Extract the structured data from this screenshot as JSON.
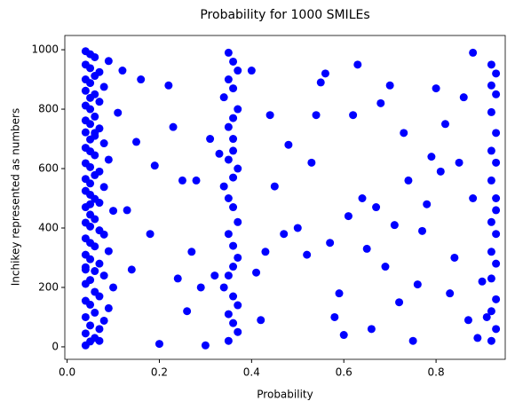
{
  "chart_data": {
    "type": "scatter",
    "title": "Probability for 1000 SMILEs",
    "x_label": "Probability",
    "y_label": "Inchikey represented as numbers",
    "color": "#0000ff",
    "xlim": [
      -0.005,
      0.95
    ],
    "ylim": [
      -42,
      1048
    ],
    "xticks": [
      {
        "value": 0,
        "label": "0.0"
      },
      0.2,
      0.4,
      0.6,
      0.8
    ],
    "yticks": [
      0,
      200,
      400,
      600,
      800,
      1000
    ],
    "x": [
      0.04,
      0.05,
      0.06,
      0.04,
      0.07,
      0.05,
      0.08,
      0.04,
      0.06,
      0.09,
      0.05,
      0.04,
      0.07,
      0.06,
      0.1,
      0.04,
      0.05,
      0.08,
      0.06,
      0.04,
      0.07,
      0.05,
      0.04,
      0.09,
      0.06,
      0.05,
      0.04,
      0.08,
      0.07,
      0.05,
      0.04,
      0.06,
      0.05,
      0.1,
      0.04,
      0.07,
      0.06,
      0.05,
      0.04,
      0.08,
      0.05,
      0.04,
      0.06,
      0.07,
      0.05,
      0.04,
      0.09,
      0.06,
      0.05,
      0.04,
      0.08,
      0.05,
      0.06,
      0.04,
      0.07,
      0.05,
      0.04,
      0.06,
      0.11,
      0.05,
      0.04,
      0.07,
      0.05,
      0.06,
      0.04,
      0.08,
      0.05,
      0.04,
      0.06,
      0.07,
      0.05,
      0.04,
      0.09,
      0.06,
      0.05,
      0.04,
      0.07,
      0.05,
      0.06,
      0.04,
      0.35,
      0.36,
      0.37,
      0.35,
      0.36,
      0.34,
      0.37,
      0.36,
      0.35,
      0.36,
      0.36,
      0.35,
      0.37,
      0.36,
      0.34,
      0.35,
      0.36,
      0.37,
      0.35,
      0.36,
      0.37,
      0.36,
      0.35,
      0.34,
      0.36,
      0.37,
      0.35,
      0.36,
      0.37,
      0.35,
      0.92,
      0.93,
      0.92,
      0.93,
      0.92,
      0.93,
      0.92,
      0.93,
      0.92,
      0.93,
      0.93,
      0.92,
      0.93,
      0.92,
      0.93,
      0.92,
      0.93,
      0.92,
      0.93,
      0.92,
      0.12,
      0.15,
      0.18,
      0.2,
      0.22,
      0.25,
      0.27,
      0.3,
      0.32,
      0.4,
      0.42,
      0.45,
      0.47,
      0.5,
      0.52,
      0.55,
      0.57,
      0.58,
      0.6,
      0.62,
      0.64,
      0.66,
      0.68,
      0.7,
      0.72,
      0.74,
      0.76,
      0.78,
      0.8,
      0.82,
      0.84,
      0.86,
      0.88,
      0.9,
      0.13,
      0.16,
      0.19,
      0.23,
      0.26,
      0.29,
      0.31,
      0.33,
      0.41,
      0.44,
      0.48,
      0.53,
      0.56,
      0.59,
      0.61,
      0.63,
      0.65,
      0.67,
      0.69,
      0.71,
      0.73,
      0.75,
      0.77,
      0.79,
      0.81,
      0.83,
      0.85,
      0.87,
      0.89,
      0.91,
      0.14,
      0.24,
      0.28,
      0.43,
      0.54,
      0.88
    ],
    "values": [
      5,
      18,
      30,
      45,
      60,
      72,
      88,
      100,
      115,
      130,
      142,
      155,
      170,
      185,
      200,
      212,
      225,
      240,
      255,
      268,
      280,
      295,
      310,
      322,
      338,
      350,
      365,
      378,
      392,
      405,
      418,
      430,
      445,
      458,
      470,
      485,
      498,
      512,
      525,
      538,
      550,
      565,
      578,
      590,
      605,
      618,
      630,
      645,
      658,
      670,
      685,
      698,
      710,
      722,
      735,
      750,
      762,
      775,
      788,
      800,
      812,
      825,
      838,
      850,
      862,
      875,
      888,
      900,
      912,
      925,
      938,
      950,
      962,
      975,
      985,
      995,
      20,
      480,
      720,
      260,
      990,
      960,
      930,
      900,
      870,
      840,
      800,
      770,
      740,
      700,
      660,
      630,
      600,
      570,
      540,
      500,
      470,
      420,
      380,
      340,
      300,
      270,
      240,
      200,
      170,
      140,
      110,
      80,
      50,
      20,
      950,
      920,
      880,
      850,
      790,
      720,
      660,
      620,
      560,
      500,
      460,
      420,
      380,
      320,
      280,
      230,
      160,
      120,
      60,
      20,
      930,
      690,
      380,
      10,
      880,
      560,
      320,
      5,
      240,
      930,
      90,
      540,
      380,
      400,
      310,
      890,
      350,
      100,
      40,
      780,
      500,
      60,
      820,
      880,
      150,
      560,
      210,
      480,
      870,
      750,
      300,
      840,
      500,
      220,
      460,
      900,
      610,
      740,
      120,
      200,
      700,
      650,
      250,
      780,
      680,
      620,
      920,
      180,
      440,
      950,
      330,
      470,
      270,
      410,
      720,
      20,
      390,
      640,
      590,
      180,
      620,
      90,
      30,
      100,
      260,
      230,
      560,
      320,
      780,
      990
    ]
  }
}
